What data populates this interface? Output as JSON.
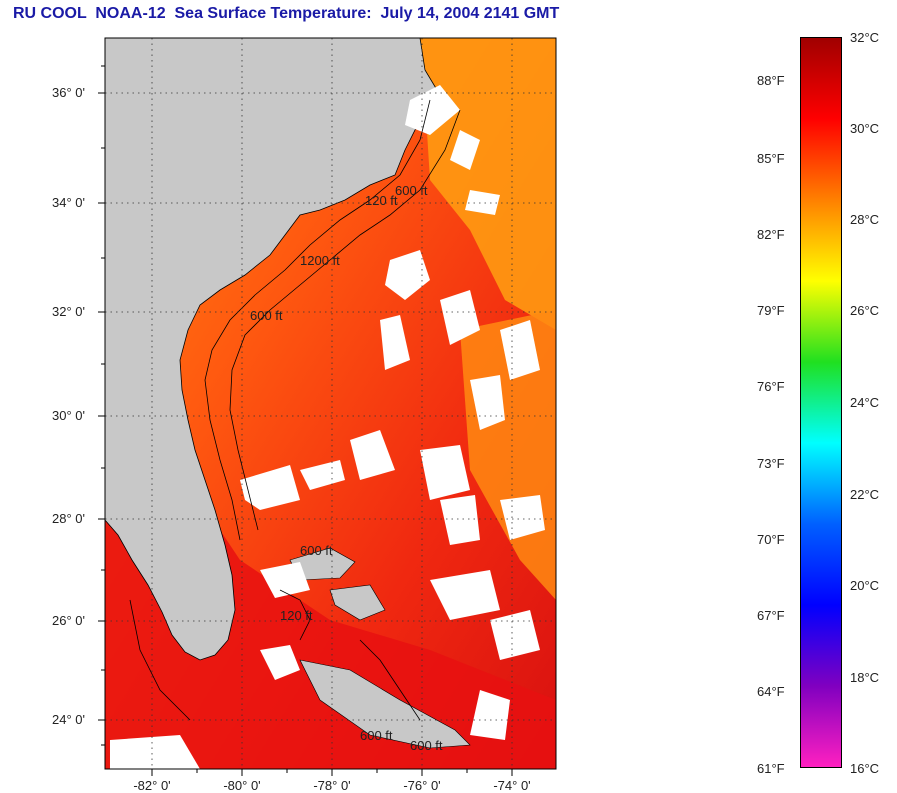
{
  "title": "RU COOL  NOAA-12  Sea Surface Temperature:  July 14, 2004 2141 GMT",
  "map": {
    "lat_labels": [
      "36° 0'",
      "34° 0'",
      "32° 0'",
      "30° 0'",
      "28° 0'",
      "26° 0'",
      "24° 0'"
    ],
    "lon_labels": [
      "-82° 0'",
      "-80° 0'",
      "-78° 0'",
      "-76° 0'",
      "-74° 0'"
    ],
    "contour_labels": [
      "120 ft",
      "600 ft",
      "1200 ft",
      "600 ft",
      "600 ft",
      "120 ft",
      "600 ft",
      "600 ft"
    ],
    "colors": {
      "land": "#c8c8c8",
      "ocean_warm": "#ff4a10",
      "ocean_hot": "#e01010",
      "ocean_cool": "#ff9a10",
      "cloud": "#ffffff",
      "contour": "#000000"
    }
  },
  "colorbar": {
    "fahrenheit_labels": [
      "88°F",
      "85°F",
      "82°F",
      "79°F",
      "76°F",
      "73°F",
      "70°F",
      "67°F",
      "64°F",
      "61°F"
    ],
    "celsius_labels": [
      "32°C",
      "30°C",
      "28°C",
      "26°C",
      "24°C",
      "22°C",
      "20°C",
      "18°C",
      "16°C"
    ],
    "celsius_min": 16,
    "celsius_max": 32,
    "gradient_colors": [
      "#a00000",
      "#ff0000",
      "#ff8000",
      "#ffff00",
      "#20e020",
      "#00ffff",
      "#0060ff",
      "#0000ff",
      "#8000c0",
      "#ff20c0"
    ]
  }
}
